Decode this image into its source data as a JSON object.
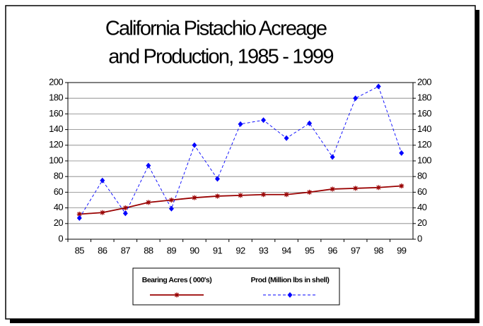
{
  "chart_data": {
    "type": "line",
    "title": [
      "California Pistachio Acreage",
      "and Production, 1985 - 1999"
    ],
    "categories": [
      "85",
      "86",
      "87",
      "88",
      "89",
      "90",
      "91",
      "92",
      "93",
      "94",
      "95",
      "96",
      "97",
      "98",
      "99"
    ],
    "series": [
      {
        "name": "Bearing Acres ( 000's)",
        "color": "#990000",
        "marker": "star",
        "dash": false,
        "values": [
          32,
          34,
          40,
          47,
          50,
          53,
          55,
          56,
          57,
          57,
          60,
          64,
          65,
          66,
          68
        ]
      },
      {
        "name": "Prod (Million lbs in shell)",
        "color": "#0000ff",
        "marker": "diamond",
        "dash": true,
        "values": [
          27,
          75,
          33,
          94,
          39,
          120,
          77,
          147,
          152,
          129,
          148,
          105,
          180,
          195,
          110
        ]
      }
    ],
    "ylim": [
      0,
      200
    ],
    "yticks": [
      0,
      20,
      40,
      60,
      80,
      100,
      120,
      140,
      160,
      180,
      200
    ],
    "y2lim": [
      0,
      200
    ],
    "y2ticks": [
      0,
      20,
      40,
      60,
      80,
      100,
      120,
      140,
      160,
      180,
      200
    ],
    "grid": true,
    "legend": "bottom"
  }
}
